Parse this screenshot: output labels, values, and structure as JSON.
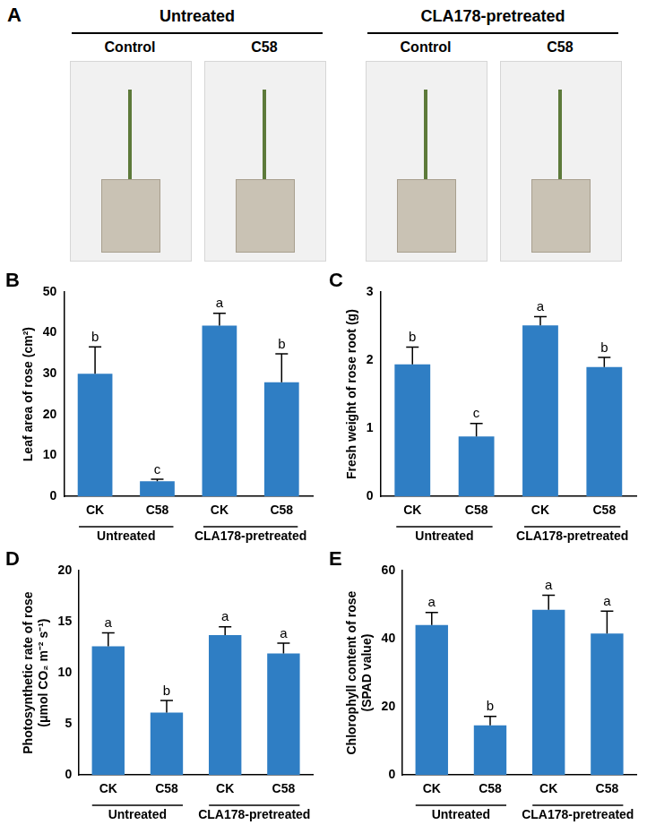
{
  "panel_a": {
    "letter": "A",
    "groups": [
      {
        "label": "Untreated",
        "columns": [
          "Control",
          "C58"
        ]
      },
      {
        "label": "CLA178-pretreated",
        "columns": [
          "Control",
          "C58"
        ]
      }
    ]
  },
  "chart_data": [
    {
      "type": "bar",
      "panel": "B",
      "ylabel": [
        "Leaf area of rose (cm²)"
      ],
      "categories": [
        "CK",
        "C58",
        "CK",
        "C58"
      ],
      "groups": [
        "Untreated",
        "CLA178-pretreated"
      ],
      "values": [
        30.0,
        3.7,
        41.8,
        27.9
      ],
      "errors": [
        6.6,
        0.5,
        3.0,
        7.0
      ],
      "letters": [
        "b",
        "c",
        "a",
        "b"
      ],
      "color": "#2f7ec4",
      "ylim": [
        0,
        50
      ],
      "yticks": [
        0,
        10,
        20,
        30,
        40,
        50
      ],
      "grid": false
    },
    {
      "type": "bar",
      "panel": "C",
      "ylabel": [
        "Fresh weight of rose root (g)"
      ],
      "categories": [
        "CK",
        "C58",
        "CK",
        "C58"
      ],
      "groups": [
        "Untreated",
        "CLA178-pretreated"
      ],
      "values": [
        1.94,
        0.88,
        2.51,
        1.9
      ],
      "errors": [
        0.25,
        0.19,
        0.13,
        0.14
      ],
      "letters": [
        "b",
        "c",
        "a",
        "b"
      ],
      "color": "#2f7ec4",
      "ylim": [
        0,
        3
      ],
      "yticks": [
        0,
        1,
        2,
        3
      ],
      "grid": false
    },
    {
      "type": "bar",
      "panel": "D",
      "ylabel": [
        "Photosynthetic rate of rose",
        "(μmol CO₂ m⁻² s⁻¹)"
      ],
      "categories": [
        "CK",
        "C58",
        "CK",
        "C58"
      ],
      "groups": [
        "Untreated",
        "CLA178-pretreated"
      ],
      "values": [
        12.6,
        6.1,
        13.7,
        11.9
      ],
      "errors": [
        1.3,
        1.2,
        0.8,
        1.0
      ],
      "letters": [
        "a",
        "b",
        "a",
        "a"
      ],
      "color": "#2f7ec4",
      "ylim": [
        0,
        20
      ],
      "yticks": [
        0,
        5,
        10,
        15,
        20
      ],
      "grid": false
    },
    {
      "type": "bar",
      "panel": "E",
      "ylabel": [
        "Chlorophyll content of rose",
        "(SPAD value)"
      ],
      "categories": [
        "CK",
        "C58",
        "CK",
        "C58"
      ],
      "groups": [
        "Untreated",
        "CLA178-pretreated"
      ],
      "values": [
        44.0,
        14.6,
        48.5,
        41.5
      ],
      "errors": [
        3.7,
        2.6,
        4.3,
        6.6
      ],
      "letters": [
        "a",
        "b",
        "a",
        "a"
      ],
      "color": "#2f7ec4",
      "ylim": [
        0,
        60
      ],
      "yticks": [
        0,
        20,
        40,
        60
      ],
      "grid": false
    }
  ]
}
